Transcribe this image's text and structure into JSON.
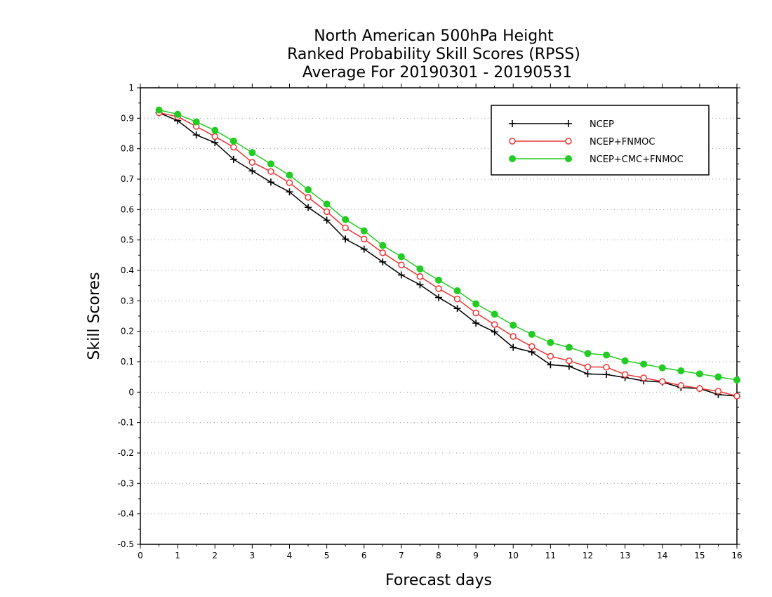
{
  "chart_data": {
    "type": "line",
    "title_lines": [
      "North American 500hPa Height",
      "Ranked Probability Skill Scores (RPSS)",
      "Average For 20190301 - 20190531"
    ],
    "xlabel": "Forecast days",
    "ylabel": "Skill Scores",
    "xlim": [
      0,
      16
    ],
    "ylim": [
      -0.5,
      1
    ],
    "x_ticks": [
      0,
      1,
      2,
      3,
      4,
      5,
      6,
      7,
      8,
      9,
      10,
      11,
      12,
      13,
      14,
      15,
      16
    ],
    "y_ticks": [
      -0.5,
      -0.4,
      -0.3,
      -0.2,
      -0.1,
      0,
      0.1,
      0.2,
      0.3,
      0.4,
      0.5,
      0.6,
      0.7,
      0.8,
      0.9,
      1
    ],
    "y_tick_labels": [
      "-0.5",
      "-0.4",
      "-0.3",
      "-0.2",
      "-0.1",
      "0",
      "0.1",
      "0.2",
      "0.3",
      "0.4",
      "0.5",
      "0.6",
      "0.7",
      "0.8",
      "0.9",
      "1"
    ],
    "grid": "horizontal dotted",
    "legend_position": "top-right",
    "x": [
      0.5,
      1,
      1.5,
      2,
      2.5,
      3,
      3.5,
      4,
      4.5,
      5,
      5.5,
      6,
      6.5,
      7,
      7.5,
      8,
      8.5,
      9,
      9.5,
      10,
      10.5,
      11,
      11.5,
      12,
      12.5,
      13,
      13.5,
      14,
      14.5,
      15,
      15.5,
      16
    ],
    "series": [
      {
        "name": "NCEP",
        "color": "#000000",
        "marker": "plus",
        "values": [
          0.918,
          0.892,
          0.845,
          0.82,
          0.765,
          0.727,
          0.69,
          0.658,
          0.607,
          0.565,
          0.503,
          0.47,
          0.428,
          0.385,
          0.353,
          0.311,
          0.275,
          0.227,
          0.198,
          0.147,
          0.132,
          0.09,
          0.085,
          0.06,
          0.058,
          0.048,
          0.037,
          0.033,
          0.015,
          0.012,
          -0.008,
          -0.013
        ]
      },
      {
        "name": "NCEP+FNMOC",
        "color": "#ee3333",
        "marker": "open-circle",
        "values": [
          0.918,
          0.905,
          0.873,
          0.84,
          0.805,
          0.755,
          0.725,
          0.688,
          0.64,
          0.593,
          0.54,
          0.503,
          0.458,
          0.418,
          0.38,
          0.34,
          0.306,
          0.26,
          0.222,
          0.183,
          0.15,
          0.118,
          0.103,
          0.083,
          0.082,
          0.058,
          0.047,
          0.035,
          0.022,
          0.012,
          0.003,
          -0.013
        ]
      },
      {
        "name": "NCEP+CMC+FNMOC",
        "color": "#22cc22",
        "marker": "filled-circle",
        "values": [
          0.927,
          0.913,
          0.888,
          0.86,
          0.825,
          0.787,
          0.75,
          0.713,
          0.665,
          0.618,
          0.567,
          0.53,
          0.482,
          0.445,
          0.405,
          0.368,
          0.333,
          0.29,
          0.256,
          0.22,
          0.19,
          0.163,
          0.147,
          0.127,
          0.122,
          0.103,
          0.092,
          0.08,
          0.07,
          0.06,
          0.05,
          0.04
        ]
      }
    ]
  }
}
